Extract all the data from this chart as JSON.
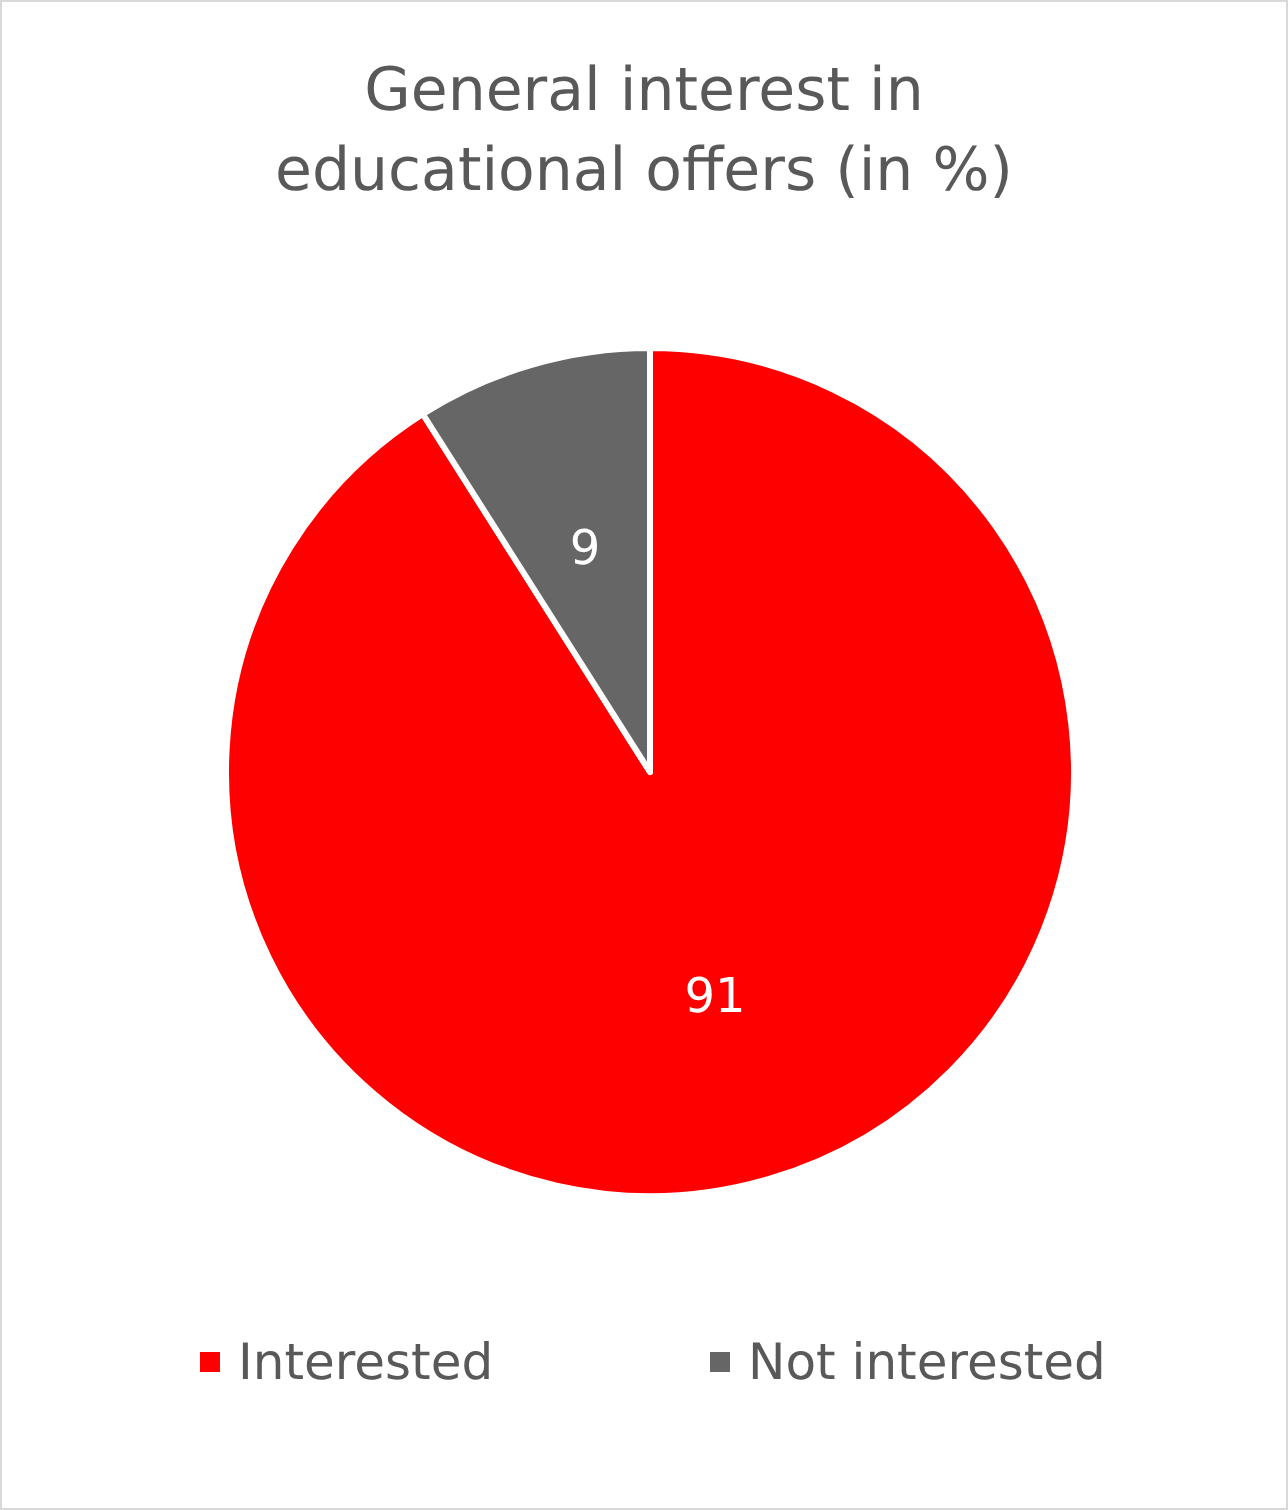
{
  "chart_data": {
    "type": "pie",
    "title": "General interest in educational offers (in %)",
    "categories": [
      "Interested",
      "Not interested"
    ],
    "values": [
      91,
      9
    ],
    "colors": [
      "#ff0000",
      "#666666"
    ],
    "data_labels": true,
    "legend": "bottom"
  }
}
